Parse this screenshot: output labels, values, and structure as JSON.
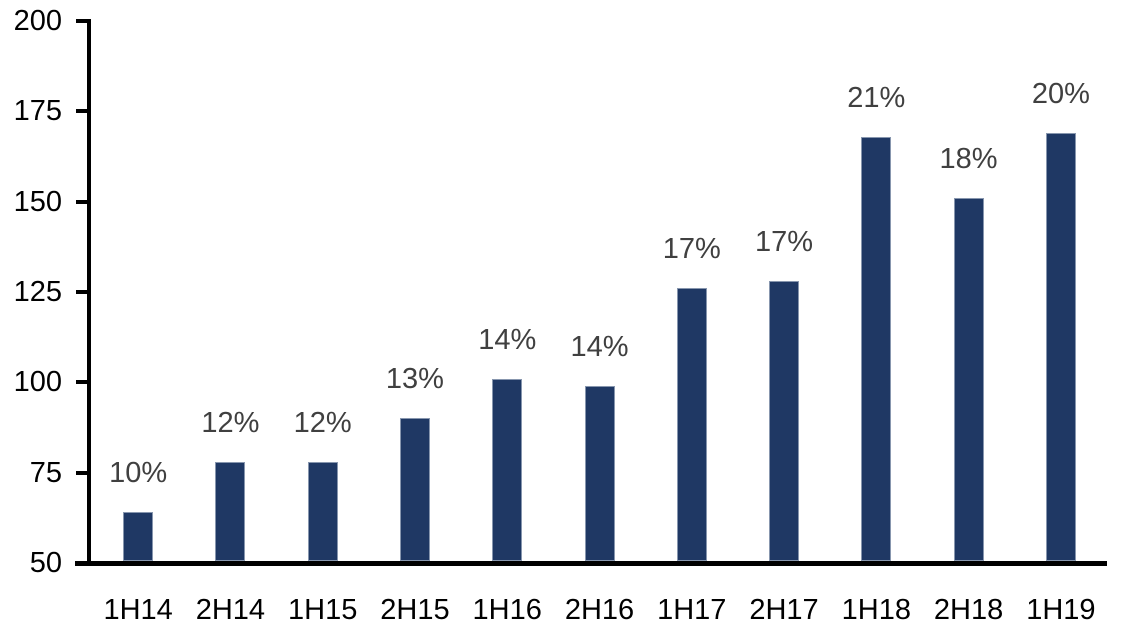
{
  "chart_data": {
    "type": "bar",
    "title": "",
    "xlabel": "",
    "ylabel": "",
    "categories": [
      "1H14",
      "2H14",
      "1H15",
      "2H15",
      "1H16",
      "2H16",
      "1H17",
      "2H17",
      "1H18",
      "2H18",
      "1H19"
    ],
    "values": [
      64,
      78,
      78,
      90,
      101,
      99,
      126,
      128,
      168,
      151,
      169
    ],
    "bar_labels": [
      "10%",
      "12%",
      "12%",
      "13%",
      "14%",
      "14%",
      "17%",
      "17%",
      "21%",
      "18%",
      "20%"
    ],
    "ylim": [
      50,
      200
    ],
    "yticks": [
      50,
      75,
      100,
      125,
      150,
      175,
      200
    ],
    "grid": false,
    "legend": false,
    "colors": {
      "bar_fill": "#1F3864",
      "bar_edge": "#8796AE",
      "data_label": "#404040",
      "axis": "#000000",
      "tick_label": "#000000",
      "background": "#FFFFFF"
    }
  }
}
